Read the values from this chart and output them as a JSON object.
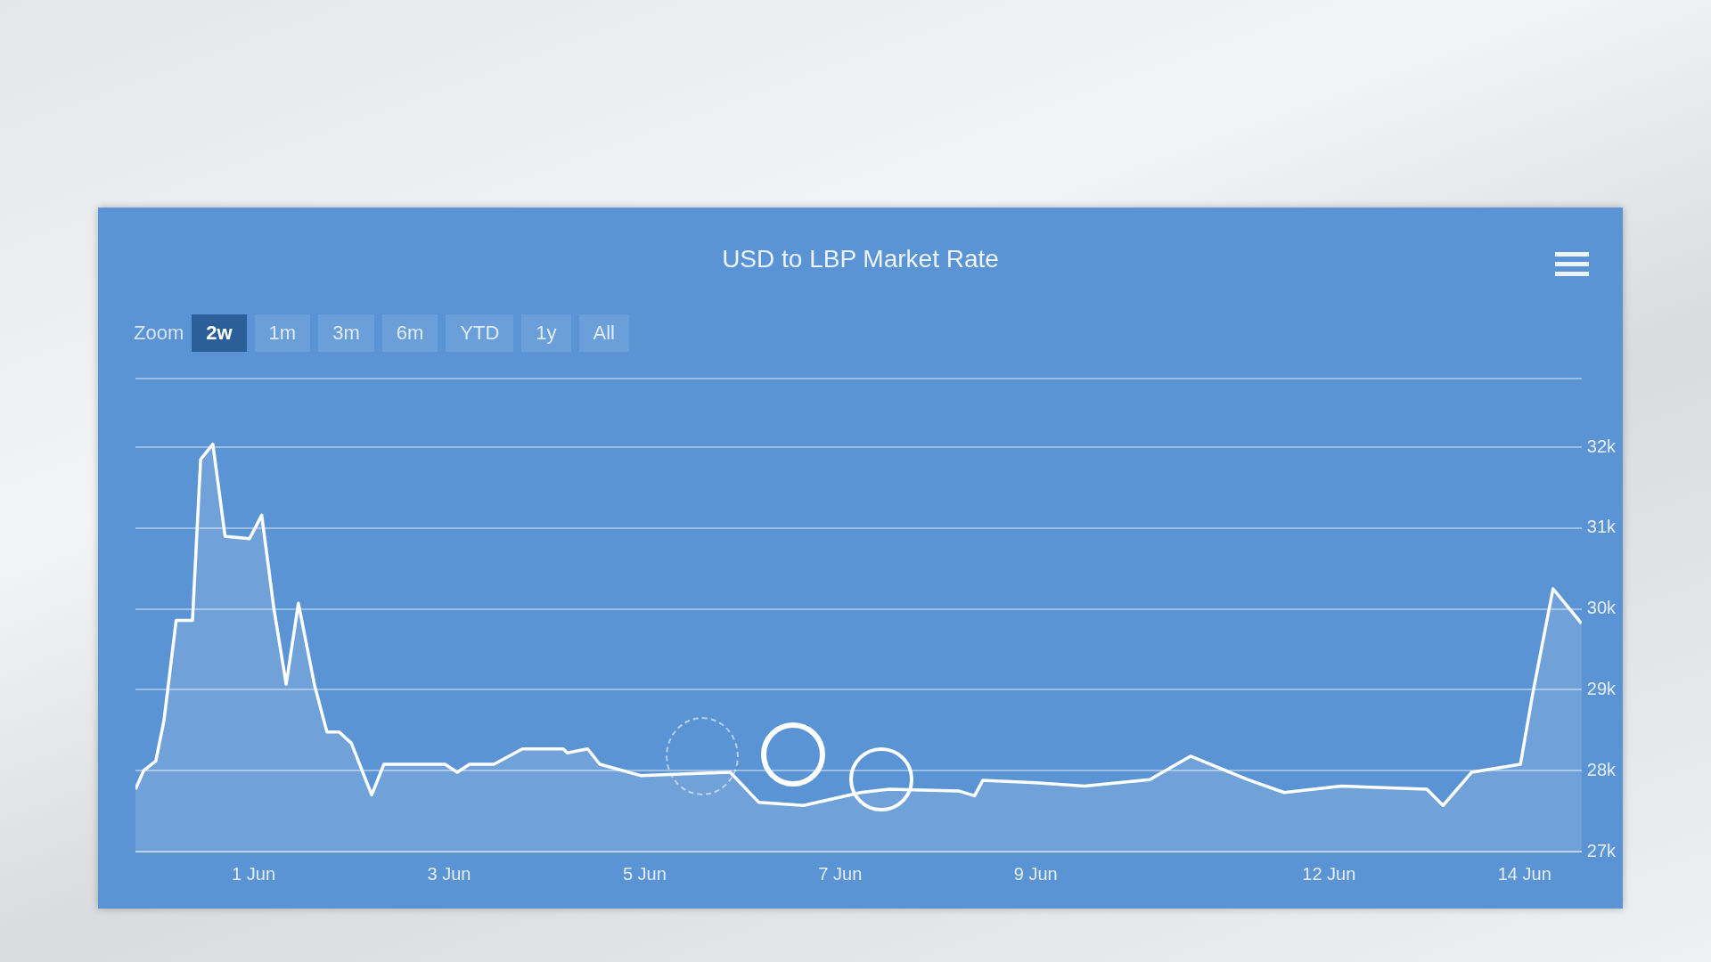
{
  "chart_data": {
    "type": "area",
    "title": "USD to LBP Market Rate",
    "annotations": [
      "Zoom",
      "2w",
      "1m",
      "3m",
      "6m",
      "YTD",
      "1y",
      "All"
    ],
    "x": [
      "--05-30T19:00",
      "--05-30T21:00",
      "--05-31T00:00",
      "--05-31T02:00",
      "--05-31T05:00",
      "--05-31T09:00",
      "--05-31T11:00",
      "--05-31T14:00",
      "--05-31T17:00",
      "--05-31T23:00",
      "--06-01T02:00",
      "--06-01T05:00",
      "--06-01T08:00",
      "--06-01T11:00",
      "--06-01T15:00",
      "--06-01T18:00",
      "--06-01T21:00",
      "--06-02T00:00",
      "--06-02T05:00",
      "--06-02T08:00",
      "--06-02T23:00",
      "--06-03T02:00",
      "--06-03T05:00",
      "--06-03T11:00",
      "--06-03T18:00",
      "--06-04T04:00",
      "--06-04T05:00",
      "--06-04T10:00",
      "--06-04T13:00",
      "--06-04T23:00",
      "--06-05T21:00",
      "--06-06T04:00",
      "--06-06T15:00",
      "--06-07T05:00",
      "--06-07T12:00",
      "--06-08T05:00",
      "--06-08T09:00",
      "--06-08T11:00",
      "--06-09T00:00",
      "--06-09T12:00",
      "--06-10T04:00",
      "--06-10T14:00",
      "--06-11T04:00",
      "--06-11T13:00",
      "--06-12T03:00",
      "--06-13T00:00",
      "--06-13T04:00",
      "--06-13T11:00",
      "--06-13T23:00",
      "--06-14T02:00",
      "--06-14T07:00",
      "--06-14T14:00"
    ],
    "series": [
      {
        "color": "#ffffff",
        "values": [
          27770,
          28000,
          28120,
          28620,
          29860,
          29860,
          31850,
          32040,
          30900,
          30870,
          31160,
          30000,
          29070,
          30070,
          29050,
          28480,
          28480,
          28340,
          27700,
          28080,
          28080,
          27980,
          28080,
          28080,
          28270,
          28270,
          28220,
          28270,
          28080,
          27940,
          27980,
          27610,
          27570,
          27730,
          27770,
          27750,
          27690,
          27880,
          27850,
          27810,
          27890,
          28180,
          27890,
          27730,
          27810,
          27770,
          27570,
          27980,
          28080,
          28950,
          30250,
          29820
        ]
      }
    ],
    "xlim": [
      "--05-30T19:00",
      "--06-14T14:00"
    ],
    "xticks": [
      {
        "value": "--06-01",
        "label": "1 Jun"
      },
      {
        "value": "--06-03",
        "label": "3 Jun"
      },
      {
        "value": "--06-05",
        "label": "5 Jun"
      },
      {
        "value": "--06-07",
        "label": "7 Jun"
      },
      {
        "value": "--06-09",
        "label": "9 Jun"
      },
      {
        "value": "--06-12",
        "label": "12 Jun"
      },
      {
        "value": "--06-14",
        "label": "14 Jun"
      }
    ],
    "ylim": [
      27000,
      32850
    ],
    "yticks": [
      {
        "value": 27000,
        "label": "27k"
      },
      {
        "value": 28000,
        "label": "28k"
      },
      {
        "value": 29000,
        "label": "29k"
      },
      {
        "value": 30000,
        "label": "30k"
      },
      {
        "value": 31000,
        "label": "31k"
      },
      {
        "value": 32000,
        "label": "32k"
      }
    ],
    "grid": "y",
    "legend": false
  }
}
